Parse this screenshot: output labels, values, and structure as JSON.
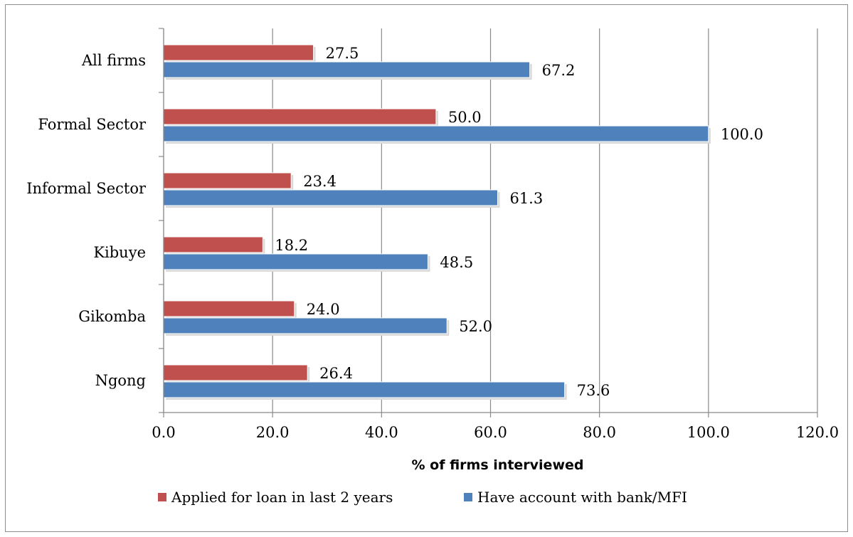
{
  "chart_data": {
    "type": "bar",
    "orientation": "horizontal",
    "categories": [
      "All firms",
      "Formal Sector ",
      "Informal Sector",
      "Kibuye",
      "Gikomba",
      "Ngong"
    ],
    "series": [
      {
        "name": "Applied for loan in last 2 years",
        "color": "#c0504d",
        "values": [
          27.5,
          50.0,
          23.4,
          18.2,
          24.0,
          26.4
        ]
      },
      {
        "name": "Have account with bank/MFI",
        "color": "#4f81bd",
        "values": [
          67.2,
          100.0,
          61.3,
          48.5,
          52.0,
          73.6
        ]
      }
    ],
    "xlabel": "% of firms interviewed",
    "xlim": [
      0,
      120
    ],
    "xticks": [
      "0.0",
      "20.0",
      "40.0",
      "60.0",
      "80.0",
      "100.0",
      "120.0"
    ],
    "grid": "vertical",
    "legend_position": "bottom",
    "value_format_decimals": 1
  }
}
